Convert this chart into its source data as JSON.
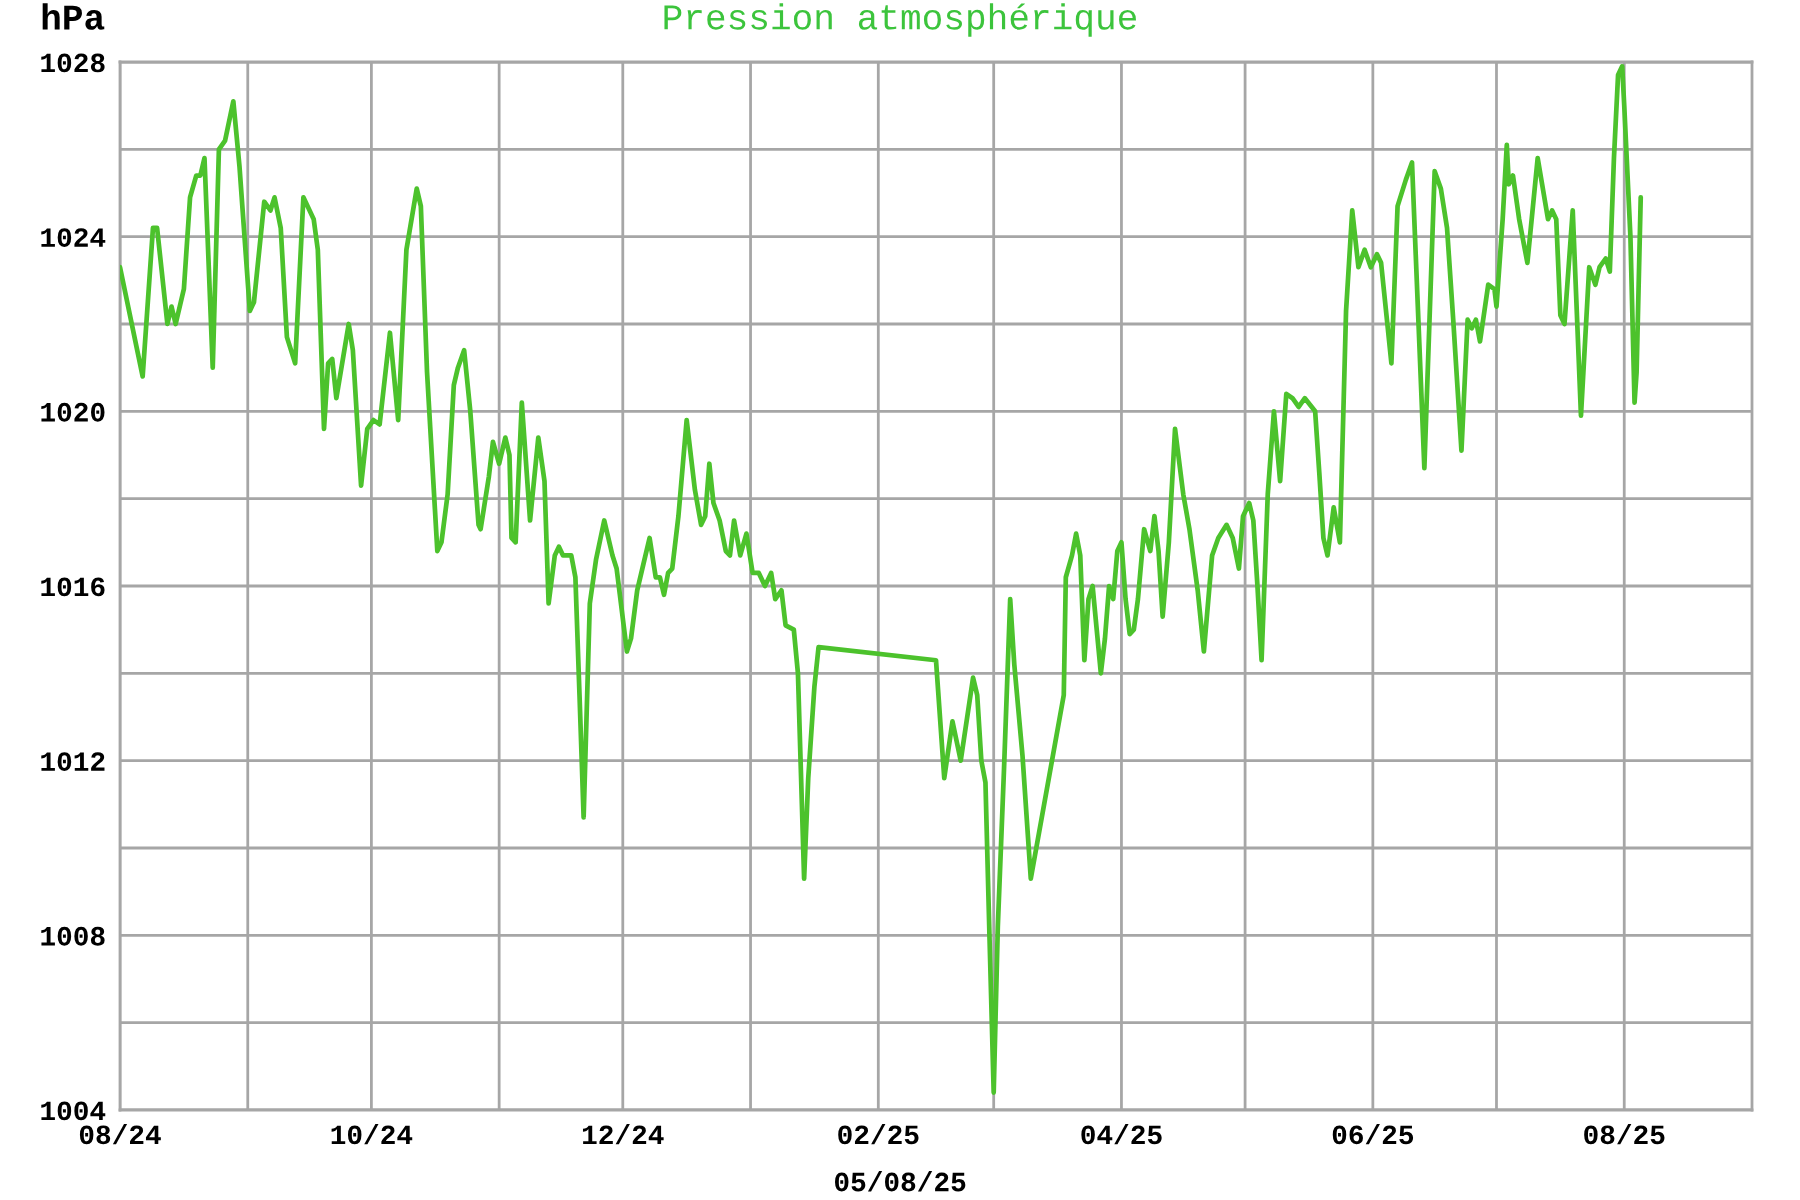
{
  "chart_data": {
    "type": "line",
    "title": "Pression atmosphérique",
    "ylabel": "hPa",
    "xlabel": "05/08/25",
    "x": [
      "2024-08-01",
      "2024-08-06T12:00",
      "2024-08-09",
      "2024-08-10",
      "2024-08-12T12:00",
      "2024-08-13T12:00",
      "2024-08-14T12:00",
      "2024-08-16T12:00",
      "2024-08-18",
      "2024-08-19T12:00",
      "2024-08-20T12:00",
      "2024-08-21T12:00",
      "2024-08-23T12:00",
      "2024-08-25",
      "2024-08-26T12:00",
      "2024-08-28T12:00",
      "2024-08-30",
      "2024-09-01T12:00",
      "2024-09-02T12:00",
      "2024-09-05",
      "2024-09-06T12:00",
      "2024-09-07T12:00",
      "2024-09-09",
      "2024-09-10T12:00",
      "2024-09-12T12:00",
      "2024-09-14T12:00",
      "2024-09-17",
      "2024-09-18",
      "2024-09-19T12:00",
      "2024-09-20T12:00",
      "2024-09-21T12:00",
      "2024-09-22T12:00",
      "2024-09-25T12:00",
      "2024-09-26T12:00",
      "2024-09-28T12:00",
      "2024-09-30",
      "2024-10-01T12:00",
      "2024-10-03",
      "2024-10-05T12:00",
      "2024-10-07T12:00",
      "2024-10-09T12:00",
      "2024-10-12",
      "2024-10-13",
      "2024-10-14T12:00",
      "2024-10-17",
      "2024-10-18",
      "2024-10-19T12:00",
      "2024-10-21",
      "2024-10-22",
      "2024-10-23T12:00",
      "2024-10-25",
      "2024-10-27",
      "2024-10-27T12:00",
      "2024-10-29",
      "2024-10-29T12:00",
      "2024-10-30T12:00",
      "2024-11-01",
      "2024-11-02T12:00",
      "2024-11-03T12:00",
      "2024-11-04",
      "2024-11-05",
      "2024-11-06T12:00",
      "2024-11-08T12:00",
      "2024-11-10T12:00",
      "2024-11-12",
      "2024-11-13",
      "2024-11-14T12:00",
      "2024-11-15T12:00",
      "2024-11-16T12:00",
      "2024-11-18T12:00",
      "2024-11-19T12:00",
      "2024-11-20T12:00",
      "2024-11-21T12:00",
      "2024-11-23",
      "2024-11-24T12:00",
      "2024-11-26T12:00",
      "2024-11-28T12:00",
      "2024-11-29T12:00",
      "2024-12-02",
      "2024-12-03",
      "2024-12-04T12:00",
      "2024-12-06",
      "2024-12-07T12:00",
      "2024-12-09",
      "2024-12-10",
      "2024-12-11",
      "2024-12-12",
      "2024-12-13",
      "2024-12-14T12:00",
      "2024-12-16T12:00",
      "2024-12-18T12:00",
      "2024-12-20",
      "2024-12-21",
      "2024-12-22",
      "2024-12-23",
      "2024-12-24T12:00",
      "2024-12-26",
      "2024-12-27",
      "2024-12-28",
      "2024-12-29T12:00",
      "2024-12-31",
      "2025-01-01T12:00",
      "2025-01-03",
      "2025-01-04T12:00",
      "2025-01-06",
      "2025-01-07",
      "2025-01-08T12:00",
      "2025-01-09T12:00",
      "2025-01-11T12:00",
      "2025-01-12T12:00",
      "2025-01-14",
      "2025-01-15",
      "2025-01-16T12:00",
      "2025-01-17T12:00",
      "2025-02-15",
      "2025-02-17",
      "2025-02-19",
      "2025-02-21",
      "2025-02-24",
      "2025-02-25",
      "2025-02-26",
      "2025-02-27",
      "2025-02-28",
      "2025-03-01",
      "2025-03-02",
      "2025-03-03T12:00",
      "2025-03-05",
      "2025-03-06",
      "2025-03-08",
      "2025-03-10",
      "2025-03-18",
      "2025-03-18T12:00",
      "2025-03-20",
      "2025-03-21",
      "2025-03-22",
      "2025-03-23",
      "2025-03-24",
      "2025-03-25",
      "2025-03-26",
      "2025-03-27",
      "2025-03-28",
      "2025-03-29",
      "2025-03-30",
      "2025-03-31",
      "2025-04-01",
      "2025-04-02",
      "2025-04-03",
      "2025-04-04",
      "2025-04-05",
      "2025-04-06T12:00",
      "2025-04-08",
      "2025-04-09",
      "2025-04-10",
      "2025-04-11",
      "2025-04-12T12:00",
      "2025-04-14",
      "2025-04-16",
      "2025-04-17T12:00",
      "2025-04-19T12:00",
      "2025-04-21",
      "2025-04-23",
      "2025-04-24T12:00",
      "2025-04-26T12:00",
      "2025-04-28",
      "2025-04-29T12:00",
      "2025-04-30T12:00",
      "2025-05-02",
      "2025-05-03",
      "2025-05-04",
      "2025-05-05",
      "2025-05-06T12:00",
      "2025-05-08",
      "2025-05-09T12:00",
      "2025-05-11",
      "2025-05-12T12:00",
      "2025-05-14",
      "2025-05-15T12:00",
      "2025-05-18",
      "2025-05-19",
      "2025-05-20",
      "2025-05-21",
      "2025-05-22T12:00",
      "2025-05-24",
      "2025-05-25T12:00",
      "2025-05-27",
      "2025-05-28T12:00",
      "2025-05-30",
      "2025-05-31T12:00",
      "2025-06-02",
      "2025-06-03",
      "2025-06-05T12:00",
      "2025-06-07",
      "2025-06-09",
      "2025-06-10T12:00",
      "2025-06-13T12:00",
      "2025-06-16",
      "2025-06-17T12:00",
      "2025-06-19",
      "2025-06-20T12:00",
      "2025-06-22T12:00",
      "2025-06-24",
      "2025-06-25",
      "2025-06-26",
      "2025-06-27",
      "2025-06-29",
      "2025-06-30T12:00",
      "2025-07-01",
      "2025-07-02T12:00",
      "2025-07-03T12:00",
      "2025-07-04",
      "2025-07-05",
      "2025-07-06T12:00",
      "2025-07-08T12:00",
      "2025-07-11",
      "2025-07-13T12:00",
      "2025-07-14T12:00",
      "2025-07-15T12:00",
      "2025-07-16T12:00",
      "2025-07-17T12:00",
      "2025-07-19T12:00",
      "2025-07-21T12:00",
      "2025-07-23T12:00",
      "2025-07-25",
      "2025-07-26",
      "2025-07-27T12:00",
      "2025-07-28T12:00",
      "2025-07-29T12:00",
      "2025-07-30T12:00",
      "2025-07-31T12:00",
      "2025-08-01",
      "2025-08-02T12:00",
      "2025-08-03T12:00",
      "2025-08-04",
      "2025-08-05"
    ],
    "series": [
      {
        "color": "#4cc22c",
        "values": [
          1023.3,
          1020.8,
          1024.2,
          1024.2,
          1022.0,
          1022.4,
          1022.0,
          1022.8,
          1024.9,
          1025.4,
          1025.4,
          1025.8,
          1021.0,
          1026.0,
          1026.2,
          1027.1,
          1025.6,
          1022.3,
          1022.5,
          1024.8,
          1024.6,
          1024.9,
          1024.2,
          1021.7,
          1021.1,
          1024.9,
          1024.4,
          1023.7,
          1019.6,
          1021.1,
          1021.2,
          1020.3,
          1022.0,
          1021.4,
          1018.3,
          1019.6,
          1019.8,
          1019.7,
          1021.8,
          1019.8,
          1023.7,
          1025.1,
          1024.7,
          1020.9,
          1016.8,
          1017.0,
          1018.1,
          1020.6,
          1021.0,
          1021.4,
          1020.0,
          1017.4,
          1017.3,
          1018.2,
          1018.5,
          1019.3,
          1018.8,
          1019.4,
          1019.0,
          1017.1,
          1017.0,
          1020.2,
          1017.5,
          1019.4,
          1018.4,
          1015.6,
          1016.7,
          1016.9,
          1016.7,
          1016.7,
          1016.2,
          1013.5,
          1010.7,
          1015.6,
          1016.6,
          1017.5,
          1016.7,
          1016.4,
          1014.5,
          1014.8,
          1015.9,
          1016.5,
          1017.1,
          1016.2,
          1016.2,
          1015.8,
          1016.3,
          1016.4,
          1017.6,
          1019.8,
          1018.2,
          1017.4,
          1017.6,
          1018.8,
          1017.9,
          1017.5,
          1016.8,
          1016.7,
          1017.5,
          1016.7,
          1017.2,
          1016.3,
          1016.3,
          1016.0,
          1016.3,
          1015.7,
          1015.9,
          1015.1,
          1015.0,
          1014.0,
          1009.3,
          1011.6,
          1013.7,
          1014.6,
          1014.3,
          1011.6,
          1012.9,
          1012.0,
          1013.9,
          1013.5,
          1012.0,
          1011.5,
          1007.9,
          1004.4,
          1008.2,
          1011.8,
          1015.7,
          1014.2,
          1012.1,
          1009.3,
          1013.5,
          1016.2,
          1016.7,
          1017.2,
          1016.7,
          1014.3,
          1015.7,
          1016.0,
          1015.0,
          1014.0,
          1014.8,
          1016.0,
          1015.7,
          1016.8,
          1017.0,
          1015.7,
          1014.9,
          1015.0,
          1015.7,
          1017.3,
          1016.8,
          1017.6,
          1016.8,
          1015.3,
          1017.0,
          1019.6,
          1018.1,
          1017.3,
          1015.9,
          1014.5,
          1016.7,
          1017.1,
          1017.4,
          1017.1,
          1016.4,
          1017.6,
          1017.9,
          1017.5,
          1016.0,
          1014.3,
          1018.1,
          1020.0,
          1018.4,
          1020.4,
          1020.3,
          1020.1,
          1020.3,
          1020.0,
          1018.6,
          1017.1,
          1016.7,
          1017.8,
          1017.0,
          1022.3,
          1024.6,
          1023.3,
          1023.7,
          1023.3,
          1023.6,
          1023.4,
          1021.1,
          1024.7,
          1025.3,
          1025.7,
          1018.7,
          1025.5,
          1025.1,
          1024.2,
          1022.1,
          1019.1,
          1022.1,
          1021.9,
          1022.1,
          1021.6,
          1022.9,
          1022.8,
          1022.4,
          1024.4,
          1026.1,
          1025.2,
          1025.4,
          1024.4,
          1023.4,
          1025.8,
          1024.4,
          1024.6,
          1024.4,
          1022.2,
          1022.0,
          1024.6,
          1019.9,
          1023.3,
          1022.9,
          1023.3,
          1023.5,
          1023.2,
          1025.8,
          1027.7,
          1027.9,
          1027.0,
          1024.0,
          1020.2,
          1020.9,
          1024.9
        ]
      }
    ],
    "xlim": [
      "2024-08-01",
      "2025-09-01"
    ],
    "xticks": [
      {
        "value": "2024-08-01",
        "label": "08/24"
      },
      {
        "value": "2024-09-01",
        "label": null
      },
      {
        "value": "2024-10-01",
        "label": "10/24"
      },
      {
        "value": "2024-11-01",
        "label": null
      },
      {
        "value": "2024-12-01",
        "label": "12/24"
      },
      {
        "value": "2025-01-01",
        "label": null
      },
      {
        "value": "2025-02-01",
        "label": "02/25"
      },
      {
        "value": "2025-03-01",
        "label": null
      },
      {
        "value": "2025-04-01",
        "label": "04/25"
      },
      {
        "value": "2025-05-01",
        "label": null
      },
      {
        "value": "2025-06-01",
        "label": "06/25"
      },
      {
        "value": "2025-07-01",
        "label": null
      },
      {
        "value": "2025-08-01",
        "label": "08/25"
      }
    ],
    "ylim": [
      1004,
      1028
    ],
    "yticks": [
      1004,
      {
        "value": 1006,
        "label": null
      },
      1008,
      {
        "value": 1010,
        "label": null
      },
      1012,
      {
        "value": 1014,
        "label": null
      },
      1016,
      {
        "value": 1018,
        "label": null
      },
      1020,
      {
        "value": 1022,
        "label": null
      },
      1024,
      {
        "value": 1026,
        "label": null
      },
      1028
    ],
    "grid": true
  }
}
